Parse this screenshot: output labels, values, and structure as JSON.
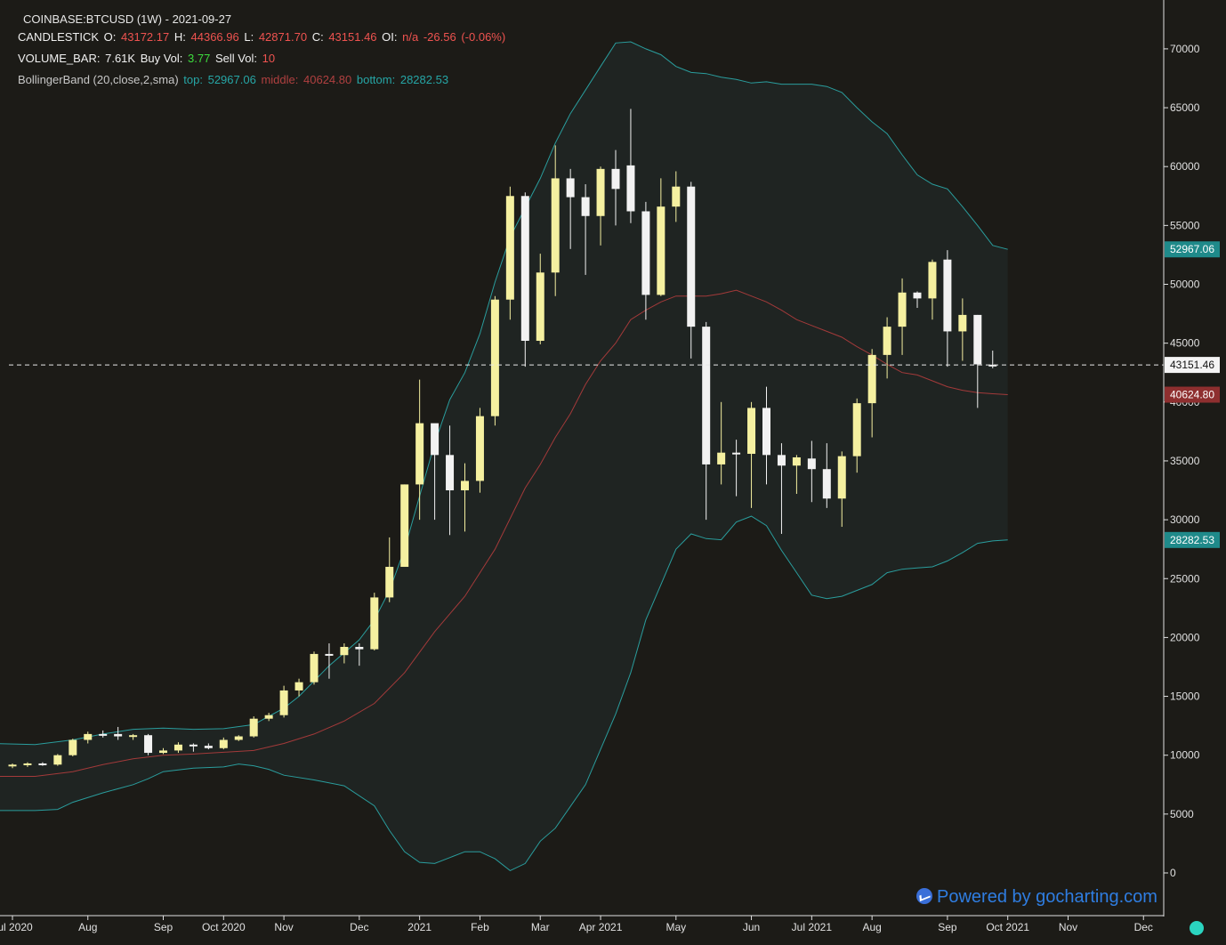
{
  "legend": {
    "title": "COINBASE:BTCUSD (1W) - 2021-09-27",
    "candlestick": {
      "label": "CANDLESTICK",
      "o_label": "O:",
      "o": "43172.17",
      "h_label": "H:",
      "h": "44366.96",
      "l_label": "L:",
      "l": "42871.70",
      "c_label": "C:",
      "c": "43151.46",
      "oi_label": "OI:",
      "oi": "n/a",
      "chg": "-26.56",
      "chg_pct": "(-0.06%)"
    },
    "volume": {
      "label": "VOLUME_BAR:",
      "value": "7.61K",
      "buy_label": "Buy Vol:",
      "buy": "3.77",
      "sell_label": "Sell Vol:",
      "sell": "10"
    },
    "bollinger": {
      "label": "BollingerBand (20,close,2,sma)",
      "top_label": "top:",
      "top": "52967.06",
      "middle_label": "middle:",
      "middle": "40624.80",
      "bottom_label": "bottom:",
      "bottom": "28282.53"
    }
  },
  "powered_by": "Powered by gocharting.com",
  "colors": {
    "background": "#1c1b17",
    "bull": "#f5f0a0",
    "bear": "#f2f2f2",
    "band": "#2a9d9d",
    "middle": "#a33a3a",
    "band_fill": "#1f2422"
  },
  "chart_data": {
    "type": "candlestick",
    "ylim": [
      -3000,
      73000
    ],
    "y_ticks": [
      0,
      5000,
      10000,
      15000,
      20000,
      25000,
      30000,
      35000,
      40000,
      45000,
      50000,
      55000,
      60000,
      65000,
      70000
    ],
    "x_tick_labels": [
      "Jul 2020",
      "Aug",
      "Sep",
      "Oct 2020",
      "Nov",
      "Dec",
      "2021",
      "Feb",
      "Mar",
      "Apr 2021",
      "May",
      "Jun",
      "Jul 2021",
      "Aug",
      "Sep",
      "Oct 2021",
      "Nov",
      "Dec"
    ],
    "x_tick_weeks": [
      0,
      5,
      10,
      14,
      18,
      23,
      27,
      31,
      35,
      39,
      44,
      49,
      53,
      57,
      62,
      66,
      70,
      75
    ],
    "last_price": 43151.46,
    "price_labels": {
      "top": "52967.06",
      "last": "43151.46",
      "middle": "40624.80",
      "bottom": "28282.53"
    },
    "candles": [
      [
        9100,
        9300,
        8900,
        9200
      ],
      [
        9200,
        9400,
        9000,
        9300
      ],
      [
        9300,
        9400,
        9100,
        9200
      ],
      [
        9200,
        10100,
        9100,
        10000
      ],
      [
        10000,
        11400,
        9900,
        11300
      ],
      [
        11300,
        12000,
        11000,
        11800
      ],
      [
        11800,
        12100,
        11500,
        11700
      ],
      [
        11800,
        12400,
        11300,
        11600
      ],
      [
        11600,
        11800,
        11300,
        11700
      ],
      [
        11700,
        11800,
        10000,
        10200
      ],
      [
        10200,
        10600,
        10100,
        10400
      ],
      [
        10400,
        11100,
        10200,
        10900
      ],
      [
        10900,
        11000,
        10300,
        10800
      ],
      [
        10800,
        11000,
        10500,
        10600
      ],
      [
        10600,
        11500,
        10500,
        11300
      ],
      [
        11300,
        11700,
        11200,
        11600
      ],
      [
        11600,
        13300,
        11500,
        13100
      ],
      [
        13100,
        13600,
        12900,
        13400
      ],
      [
        13400,
        15900,
        13200,
        15500
      ],
      [
        15500,
        16500,
        15000,
        16200
      ],
      [
        16200,
        18800,
        16000,
        18600
      ],
      [
        18600,
        19500,
        16500,
        18500
      ],
      [
        18500,
        19500,
        17800,
        19200
      ],
      [
        19200,
        19500,
        17600,
        19000
      ],
      [
        19000,
        23800,
        18900,
        23400
      ],
      [
        23400,
        28500,
        23000,
        26000
      ],
      [
        26000,
        33000,
        26000,
        33000
      ],
      [
        33000,
        41900,
        30000,
        38200
      ],
      [
        38200,
        37800,
        30000,
        35500
      ],
      [
        35500,
        38000,
        28700,
        32500
      ],
      [
        32500,
        34800,
        29000,
        33300
      ],
      [
        33300,
        39500,
        32300,
        38800
      ],
      [
        38800,
        49000,
        38000,
        48700
      ],
      [
        48700,
        58300,
        47000,
        57500
      ],
      [
        57500,
        57800,
        43000,
        45200
      ],
      [
        45200,
        52600,
        44900,
        51000
      ],
      [
        51000,
        61800,
        49000,
        59000
      ],
      [
        59000,
        59800,
        53000,
        57400
      ],
      [
        57400,
        58500,
        50800,
        55800
      ],
      [
        55800,
        60000,
        53300,
        59800
      ],
      [
        59800,
        61400,
        55000,
        58100
      ],
      [
        60100,
        64900,
        55200,
        56200
      ],
      [
        56200,
        57000,
        47000,
        49100
      ],
      [
        49100,
        59000,
        49000,
        56600
      ],
      [
        56600,
        59600,
        55300,
        58300
      ],
      [
        58300,
        58700,
        43700,
        46400
      ],
      [
        46400,
        46800,
        30000,
        34700
      ],
      [
        34700,
        40000,
        33000,
        35700
      ],
      [
        35700,
        36800,
        32000,
        35600
      ],
      [
        35600,
        40000,
        31000,
        39500
      ],
      [
        39500,
        41300,
        33000,
        35500
      ],
      [
        35500,
        36500,
        28800,
        34600
      ],
      [
        34600,
        35500,
        32200,
        35300
      ],
      [
        35200,
        36700,
        31500,
        34300
      ],
      [
        34300,
        36500,
        31000,
        31800
      ],
      [
        31800,
        35800,
        29400,
        35400
      ],
      [
        35400,
        40300,
        34000,
        39900
      ],
      [
        39900,
        44500,
        37000,
        44000
      ],
      [
        44000,
        47200,
        42000,
        46400
      ],
      [
        46400,
        50500,
        44000,
        49300
      ],
      [
        49300,
        49400,
        48000,
        48800
      ],
      [
        48800,
        52100,
        47000,
        51900
      ],
      [
        52100,
        52900,
        43000,
        46000
      ],
      [
        46000,
        48800,
        43500,
        47400
      ],
      [
        47400,
        47400,
        39500,
        43200
      ],
      [
        43172.17,
        44366.96,
        42871.7,
        43151.46
      ]
    ],
    "bollinger_top": [
      [
        -1.5,
        11000
      ],
      [
        1.5,
        10900
      ],
      [
        4,
        11300
      ],
      [
        6,
        11800
      ],
      [
        8,
        12200
      ],
      [
        10,
        12300
      ],
      [
        12,
        12200
      ],
      [
        14,
        12250
      ],
      [
        16,
        12600
      ],
      [
        17,
        13300
      ],
      [
        18,
        14000
      ],
      [
        19,
        15000
      ],
      [
        20,
        16300
      ],
      [
        21,
        17600
      ],
      [
        22,
        18700
      ],
      [
        23,
        19800
      ],
      [
        24,
        21500
      ],
      [
        25,
        24000
      ],
      [
        26,
        27500
      ],
      [
        27,
        32000
      ],
      [
        28,
        36500
      ],
      [
        29,
        40200
      ],
      [
        30,
        42500
      ],
      [
        31,
        45800
      ],
      [
        32,
        50200
      ],
      [
        33,
        54000
      ],
      [
        34,
        56500
      ],
      [
        35,
        59000
      ],
      [
        36,
        62000
      ],
      [
        37,
        64500
      ],
      [
        38,
        66500
      ],
      [
        39,
        68500
      ],
      [
        40,
        70500
      ],
      [
        41,
        70600
      ],
      [
        42,
        70000
      ],
      [
        43,
        69500
      ],
      [
        44,
        68500
      ],
      [
        45,
        68000
      ],
      [
        46,
        67900
      ],
      [
        47,
        67600
      ],
      [
        48,
        67400
      ],
      [
        49,
        67100
      ],
      [
        50,
        67200
      ],
      [
        51,
        67000
      ],
      [
        52,
        67000
      ],
      [
        53,
        67000
      ],
      [
        54,
        66800
      ],
      [
        55,
        66300
      ],
      [
        56,
        65000
      ],
      [
        57,
        63800
      ],
      [
        58,
        62800
      ],
      [
        59,
        61000
      ],
      [
        60,
        59300
      ],
      [
        61,
        58500
      ],
      [
        62,
        58100
      ],
      [
        63,
        56600
      ],
      [
        64,
        55000
      ],
      [
        65,
        53300
      ],
      [
        66,
        52967
      ]
    ],
    "bollinger_middle": [
      [
        -1.5,
        8200
      ],
      [
        1.5,
        8200
      ],
      [
        4,
        8600
      ],
      [
        6,
        9200
      ],
      [
        8,
        9700
      ],
      [
        10,
        10000
      ],
      [
        12,
        10100
      ],
      [
        14,
        10250
      ],
      [
        16,
        10400
      ],
      [
        18,
        11000
      ],
      [
        20,
        11800
      ],
      [
        22,
        12900
      ],
      [
        24,
        14400
      ],
      [
        26,
        17000
      ],
      [
        28,
        20500
      ],
      [
        30,
        23500
      ],
      [
        32,
        27500
      ],
      [
        34,
        32700
      ],
      [
        35,
        34700
      ],
      [
        36,
        37000
      ],
      [
        37,
        39000
      ],
      [
        38,
        41500
      ],
      [
        39,
        43500
      ],
      [
        40,
        45000
      ],
      [
        41,
        47000
      ],
      [
        42,
        47800
      ],
      [
        43,
        48500
      ],
      [
        44,
        49000
      ],
      [
        45,
        49000
      ],
      [
        46,
        49000
      ],
      [
        47,
        49200
      ],
      [
        48,
        49500
      ],
      [
        49,
        49000
      ],
      [
        50,
        48500
      ],
      [
        51,
        47800
      ],
      [
        52,
        47000
      ],
      [
        53,
        46500
      ],
      [
        54,
        46000
      ],
      [
        55,
        45500
      ],
      [
        56,
        44700
      ],
      [
        57,
        44000
      ],
      [
        58,
        43200
      ],
      [
        59,
        42500
      ],
      [
        60,
        42300
      ],
      [
        61,
        41800
      ],
      [
        62,
        41300
      ],
      [
        63,
        41000
      ],
      [
        64,
        40800
      ],
      [
        65,
        40700
      ],
      [
        66,
        40624
      ]
    ],
    "bollinger_bottom": [
      [
        -1.5,
        5300
      ],
      [
        1.5,
        5300
      ],
      [
        3,
        5400
      ],
      [
        4,
        6000
      ],
      [
        6,
        6800
      ],
      [
        8,
        7500
      ],
      [
        9,
        8000
      ],
      [
        10,
        8600
      ],
      [
        12,
        8900
      ],
      [
        14,
        9000
      ],
      [
        15,
        9250
      ],
      [
        16,
        9100
      ],
      [
        17,
        8800
      ],
      [
        18,
        8300
      ],
      [
        20,
        7900
      ],
      [
        22,
        7400
      ],
      [
        24,
        5700
      ],
      [
        25,
        3600
      ],
      [
        26,
        1800
      ],
      [
        27,
        900
      ],
      [
        28,
        800
      ],
      [
        29,
        1300
      ],
      [
        30,
        1800
      ],
      [
        31,
        1800
      ],
      [
        32,
        1200
      ],
      [
        33,
        200
      ],
      [
        34,
        800
      ],
      [
        35,
        2700
      ],
      [
        36,
        3800
      ],
      [
        38,
        7500
      ],
      [
        40,
        13500
      ],
      [
        41,
        17000
      ],
      [
        42,
        21500
      ],
      [
        43,
        24500
      ],
      [
        44,
        27500
      ],
      [
        45,
        28800
      ],
      [
        46,
        28400
      ],
      [
        47,
        28300
      ],
      [
        48,
        29800
      ],
      [
        49,
        30300
      ],
      [
        50,
        29500
      ],
      [
        51,
        27400
      ],
      [
        52,
        25500
      ],
      [
        53,
        23600
      ],
      [
        54,
        23300
      ],
      [
        55,
        23500
      ],
      [
        56,
        24000
      ],
      [
        57,
        24500
      ],
      [
        58,
        25500
      ],
      [
        59,
        25800
      ],
      [
        60,
        25900
      ],
      [
        61,
        26000
      ],
      [
        62,
        26500
      ],
      [
        63,
        27200
      ],
      [
        64,
        28000
      ],
      [
        65,
        28200
      ],
      [
        66,
        28282
      ]
    ]
  }
}
